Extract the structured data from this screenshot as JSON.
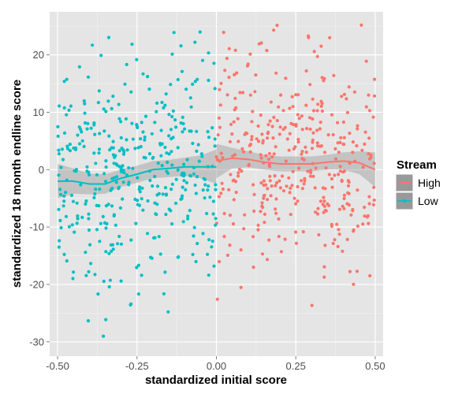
{
  "chart_data": {
    "type": "scatter",
    "title": "",
    "xlabel": "standardized initial score",
    "ylabel": "standardized 18 month endline score",
    "xlim": [
      -0.525,
      0.525
    ],
    "ylim": [
      -32.5,
      27.5
    ],
    "xticks": [
      -0.5,
      -0.25,
      0.0,
      0.25,
      0.5
    ],
    "xtick_labels": [
      "-0.50",
      "-0.25",
      "0.00",
      "0.25",
      "0.50"
    ],
    "yticks": [
      -30,
      -20,
      -10,
      0,
      10,
      20
    ],
    "ytick_labels": [
      "-30",
      "-20",
      "-10",
      "0",
      "10",
      "20"
    ],
    "grid": true,
    "legend": {
      "title": "Stream",
      "position": "right",
      "entries": [
        {
          "label": "High",
          "color": "#F8766D"
        },
        {
          "label": "Low",
          "color": "#00BFC4"
        }
      ]
    },
    "series": [
      {
        "name": "High",
        "color": "#F8766D",
        "x_range": [
          0.0,
          0.5
        ],
        "n_points": 380,
        "trend": {
          "x": [
            0.0,
            0.05,
            0.1,
            0.15,
            0.2,
            0.25,
            0.3,
            0.35,
            0.4,
            0.45,
            0.5
          ],
          "y": [
            1.5,
            2.0,
            1.8,
            1.3,
            1.0,
            1.0,
            1.0,
            1.3,
            1.5,
            1.2,
            0.0
          ],
          "ci_half_width": [
            3.0,
            1.8,
            1.4,
            1.3,
            1.3,
            1.3,
            1.3,
            1.3,
            1.5,
            2.0,
            3.0
          ]
        }
      },
      {
        "name": "Low",
        "color": "#00BFC4",
        "x_range": [
          -0.5,
          0.0
        ],
        "n_points": 400,
        "trend": {
          "x": [
            -0.5,
            -0.45,
            -0.4,
            -0.35,
            -0.3,
            -0.25,
            -0.2,
            -0.15,
            -0.1,
            -0.05,
            0.0
          ],
          "y": [
            -2.0,
            -2.0,
            -2.5,
            -2.5,
            -1.5,
            -0.8,
            0.0,
            0.2,
            0.5,
            0.5,
            0.5
          ],
          "ci_half_width": [
            3.0,
            2.2,
            1.8,
            1.7,
            1.5,
            1.5,
            1.5,
            1.5,
            1.6,
            2.0,
            3.0
          ]
        }
      }
    ]
  }
}
